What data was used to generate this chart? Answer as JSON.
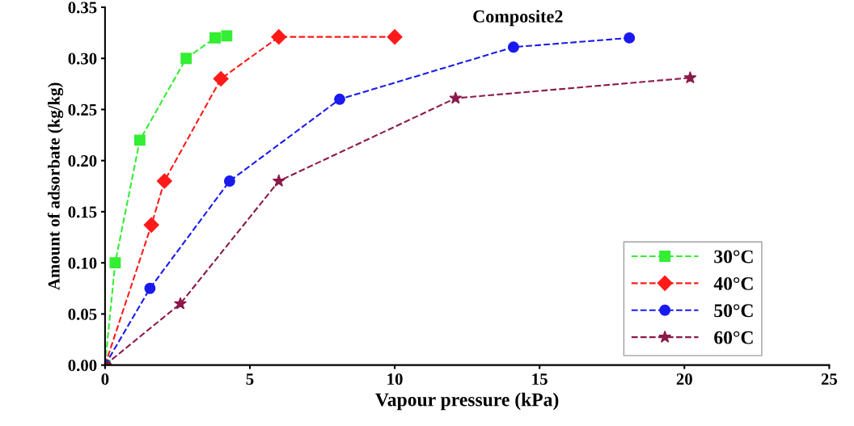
{
  "chart_data": {
    "type": "line",
    "title": "Composite2",
    "xlabel": "Vapour pressure (kPa)",
    "ylabel": "Amount of adsorbate (kg/kg)",
    "xlim": [
      0,
      25
    ],
    "xticks": [
      0,
      5,
      10,
      15,
      20,
      25
    ],
    "ylim": [
      0,
      0.35
    ],
    "yticks": [
      {
        "value": 0,
        "label": "0.00"
      },
      {
        "value": 0.05,
        "label": "0.05"
      },
      {
        "value": 0.1,
        "label": "0.10"
      },
      {
        "value": 0.15,
        "label": "0.15"
      },
      {
        "value": 0.2,
        "label": "0.20"
      },
      {
        "value": 0.25,
        "label": "0.25"
      },
      {
        "value": 0.3,
        "label": "0.30"
      },
      {
        "value": 0.35,
        "label": "0.35"
      }
    ],
    "grid": false,
    "legend": "bottom right",
    "line_style": "dashed",
    "series": [
      {
        "name": "30°C",
        "color": "#33ee33",
        "marker": "square",
        "x": [
          0,
          0.35,
          1.2,
          2.8,
          3.8,
          4.2
        ],
        "values": [
          0,
          0.1,
          0.22,
          0.3,
          0.32,
          0.322
        ]
      },
      {
        "name": "40°C",
        "color": "#ff1a1a",
        "marker": "diamond",
        "x": [
          0,
          1.6,
          2.05,
          4.0,
          6.0,
          10.0
        ],
        "values": [
          0,
          0.137,
          0.18,
          0.28,
          0.321,
          0.321
        ]
      },
      {
        "name": "50°C",
        "color": "#1a1aee",
        "marker": "circle",
        "x": [
          0,
          1.55,
          4.3,
          8.1,
          14.1,
          18.1
        ],
        "values": [
          0,
          0.075,
          0.18,
          0.26,
          0.311,
          0.32
        ]
      },
      {
        "name": "60°C",
        "color": "#8b1a4a",
        "marker": "star",
        "x": [
          0,
          2.6,
          6.0,
          12.1,
          20.2
        ],
        "values": [
          0,
          0.06,
          0.18,
          0.261,
          0.281
        ]
      }
    ]
  }
}
